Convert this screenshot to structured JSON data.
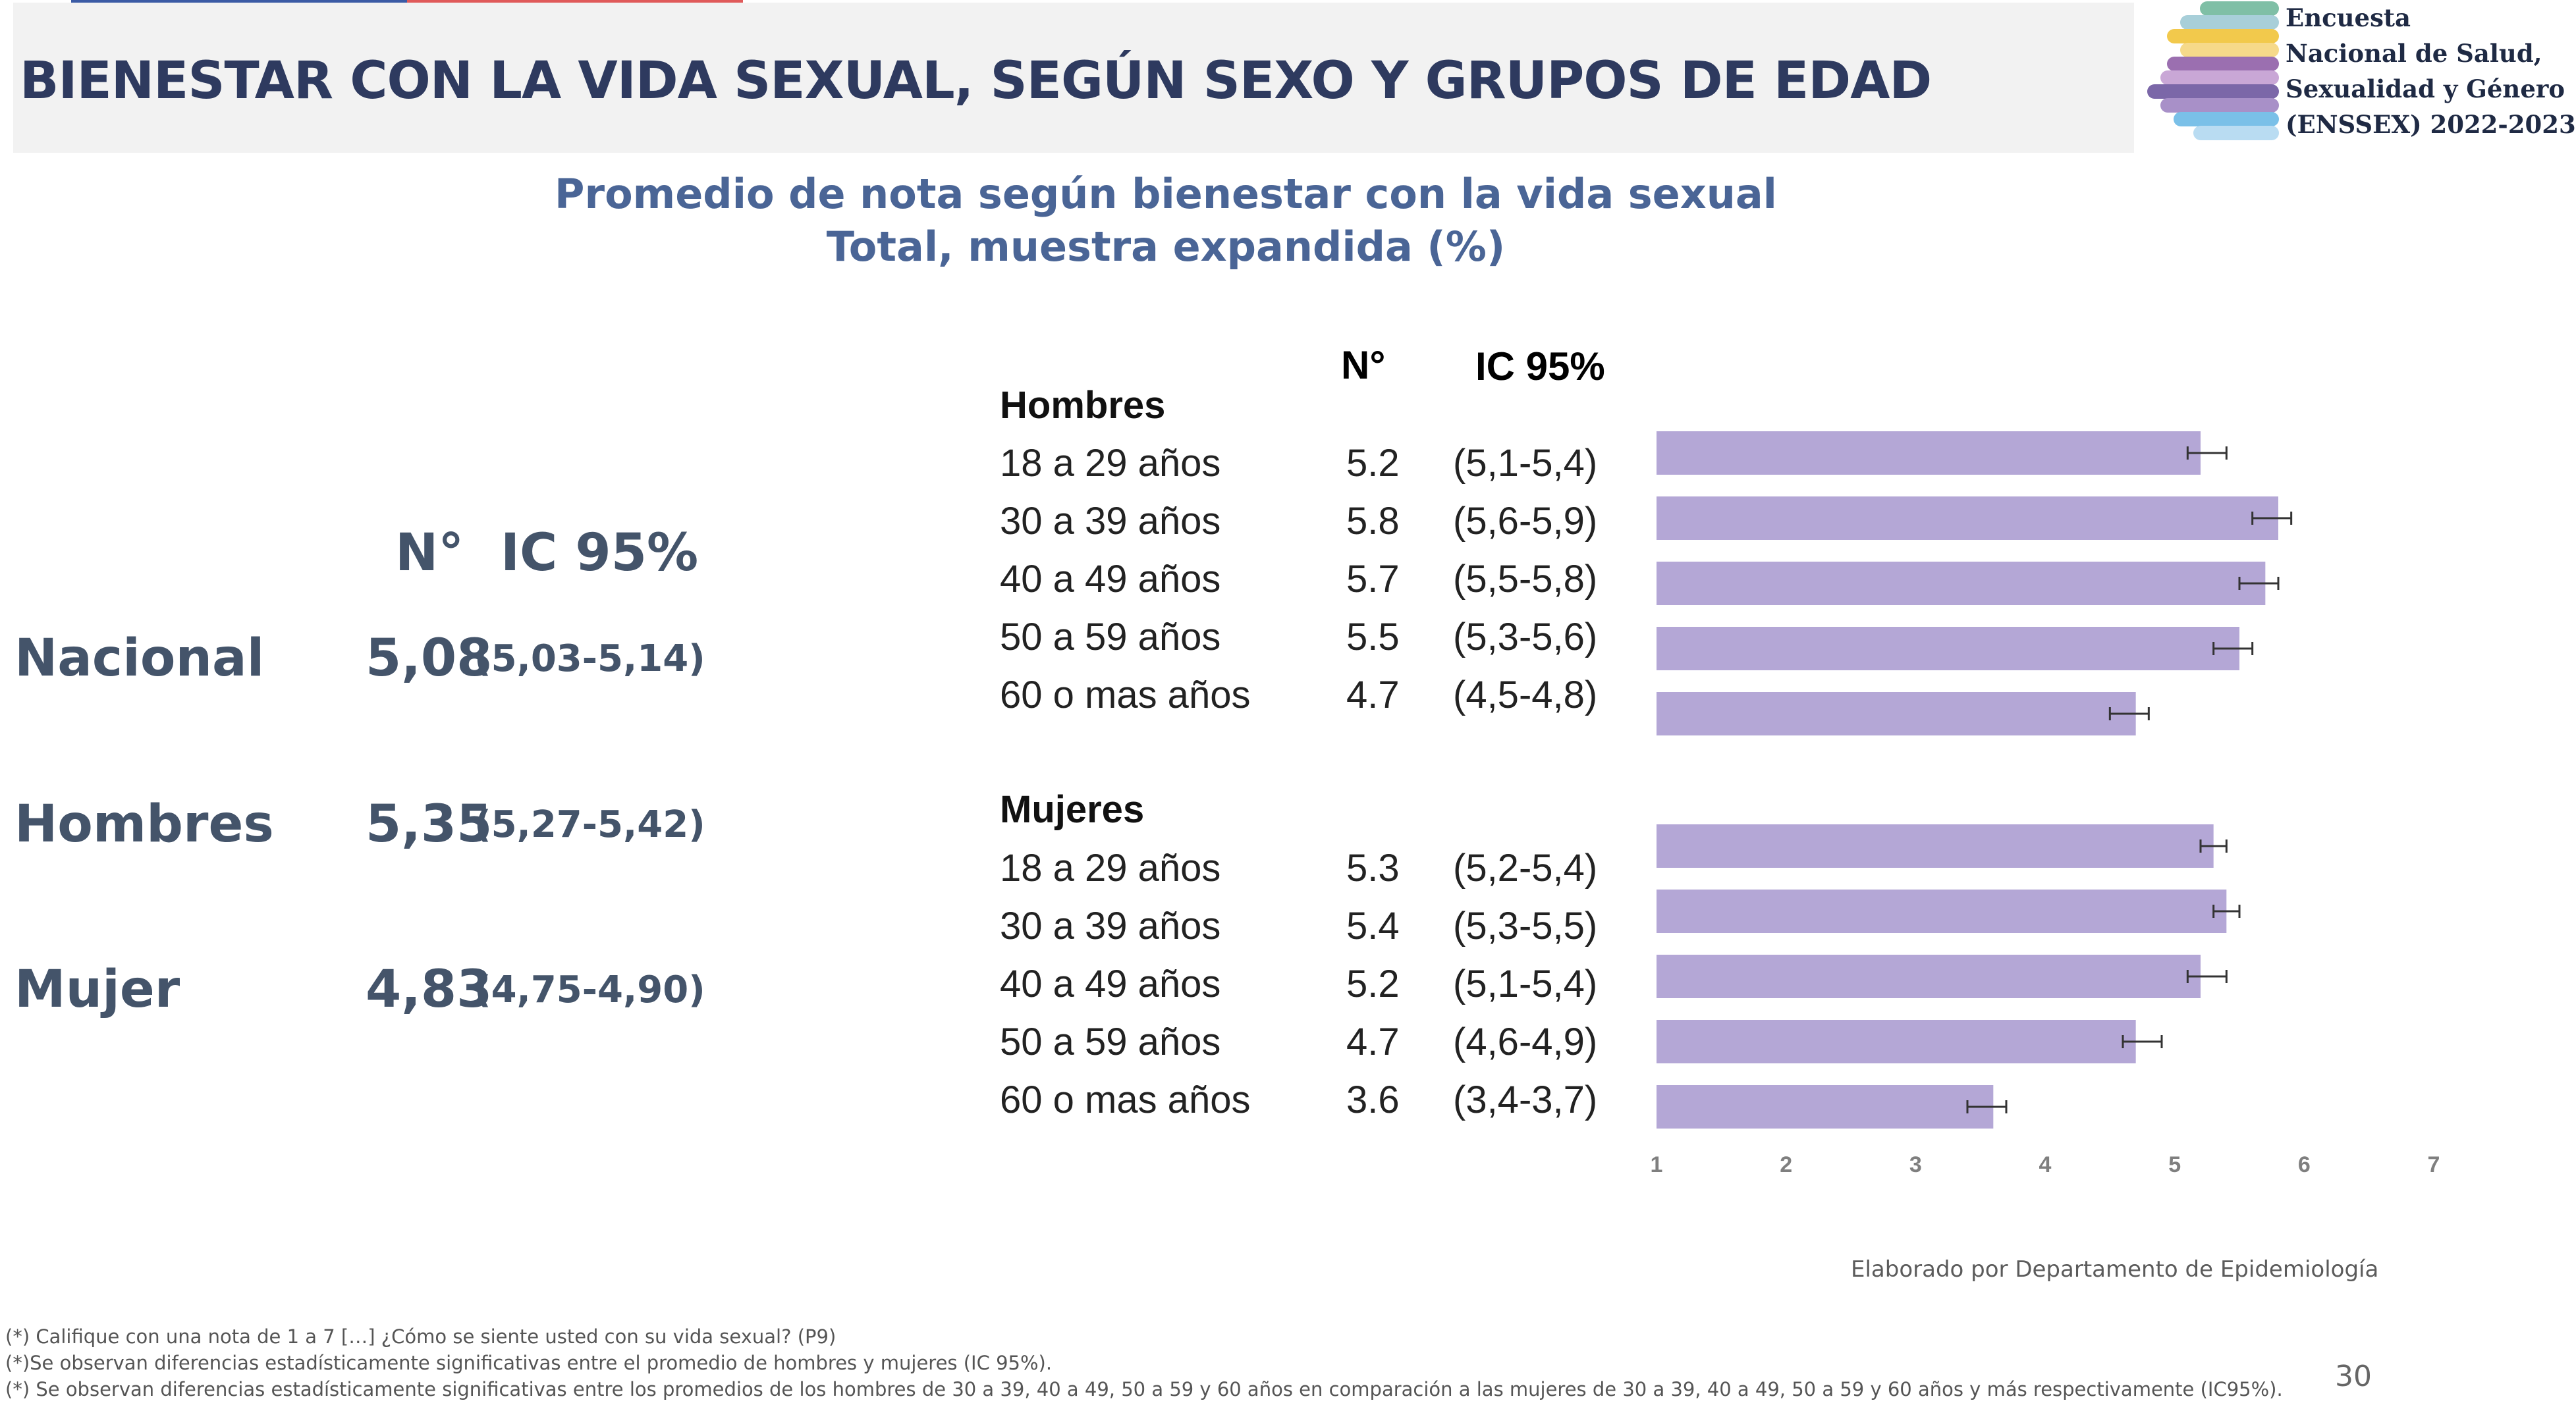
{
  "title": "BIENESTAR CON LA VIDA SEXUAL, SEGÚN SEXO Y GRUPOS DE EDAD",
  "logo": {
    "lines": [
      "Encuesta",
      "Nacional de Salud,",
      "Sexualidad y Género",
      "(ENSSEX) 2022-2023"
    ],
    "colors": [
      "#7fbfa6",
      "#a8cfd9",
      "#f2c94c",
      "#f6d98a",
      "#9b6fb0",
      "#c9a7d6",
      "#7b67a8",
      "#a890c8",
      "#7ac0e8",
      "#b9dcf2"
    ]
  },
  "subtitle": {
    "line1": "Promedio de nota según bienestar con la vida sexual",
    "line2": "Total, muestra expandida (%)"
  },
  "summary": {
    "header_n": "N°",
    "header_ci": "IC 95%",
    "rows": [
      {
        "label": "Nacional",
        "value": "5,08",
        "ci": "(5,03-5,14)"
      },
      {
        "label": "Hombres",
        "value": "5,35",
        "ci": "(5,27-5,42)"
      },
      {
        "label": "Mujer",
        "value": "4,83",
        "ci": "(4,75-4,90)"
      }
    ]
  },
  "table": {
    "header_n": "N°",
    "header_ci": "IC 95%",
    "groups": [
      {
        "name": "Hombres",
        "rows": [
          {
            "age": "18 a 29 años",
            "n": "5.2",
            "ci": "(5,1-5,4)"
          },
          {
            "age": "30 a 39 años",
            "n": "5.8",
            "ci": "(5,6-5,9)"
          },
          {
            "age": "40 a 49 años",
            "n": "5.7",
            "ci": "(5,5-5,8)"
          },
          {
            "age": "50 a 59 años",
            "n": "5.5",
            "ci": "(5,3-5,6)"
          },
          {
            "age": "60 o mas años",
            "n": "4.7",
            "ci": "(4,5-4,8)"
          }
        ]
      },
      {
        "name": "Mujeres",
        "rows": [
          {
            "age": "18 a 29 años",
            "n": "5.3",
            "ci": "(5,2-5,4)"
          },
          {
            "age": "30 a 39 años",
            "n": "5.4",
            "ci": "(5,3-5,5)"
          },
          {
            "age": "40 a 49 años",
            "n": "5.2",
            "ci": "(5,1-5,4)"
          },
          {
            "age": "50 a 59 años",
            "n": "4.7",
            "ci": "(4,6-4,9)"
          },
          {
            "age": "60 o mas años",
            "n": "3.6",
            "ci": "(3,4-3,7)"
          }
        ]
      }
    ]
  },
  "chart_data": {
    "type": "bar",
    "orientation": "horizontal",
    "bar_color": "#b4a7d6",
    "xlim": [
      1,
      7
    ],
    "x_ticks": [
      "1",
      "2",
      "3",
      "4",
      "5",
      "6",
      "7"
    ],
    "series": [
      {
        "name": "Hombres",
        "categories": [
          "18 a 29 años",
          "30 a 39 años",
          "40 a 49 años",
          "50 a 59 años",
          "60 o mas años"
        ],
        "values": [
          5.2,
          5.8,
          5.7,
          5.5,
          4.7
        ],
        "ci_low": [
          5.1,
          5.6,
          5.5,
          5.3,
          4.5
        ],
        "ci_high": [
          5.4,
          5.9,
          5.8,
          5.6,
          4.8
        ]
      },
      {
        "name": "Mujeres",
        "categories": [
          "18 a 29 años",
          "30 a 39 años",
          "40 a 49 años",
          "50 a 59 años",
          "60 o mas años"
        ],
        "values": [
          5.3,
          5.4,
          5.2,
          4.7,
          3.6
        ],
        "ci_low": [
          5.2,
          5.3,
          5.1,
          4.6,
          3.4
        ],
        "ci_high": [
          5.4,
          5.5,
          5.4,
          4.9,
          3.7
        ]
      }
    ]
  },
  "credit": "Elaborado por Departamento de Epidemiología",
  "footnotes": [
    "(*) Califique con una nota de 1 a 7 […] ¿Cómo se siente usted con su vida sexual? (P9)",
    "(*)Se observan diferencias estadísticamente significativas entre el promedio de hombres  y mujeres (IC 95%).",
    "(*) Se observan diferencias estadísticamente significativas entre los promedios de los hombres de 30 a 39, 40 a 49, 50 a 59 y 60 años en comparación a las mujeres de 30 a 39, 40 a 49, 50 a 59 y 60 años y más respectivamente (IC95%)."
  ],
  "page_number": "30"
}
